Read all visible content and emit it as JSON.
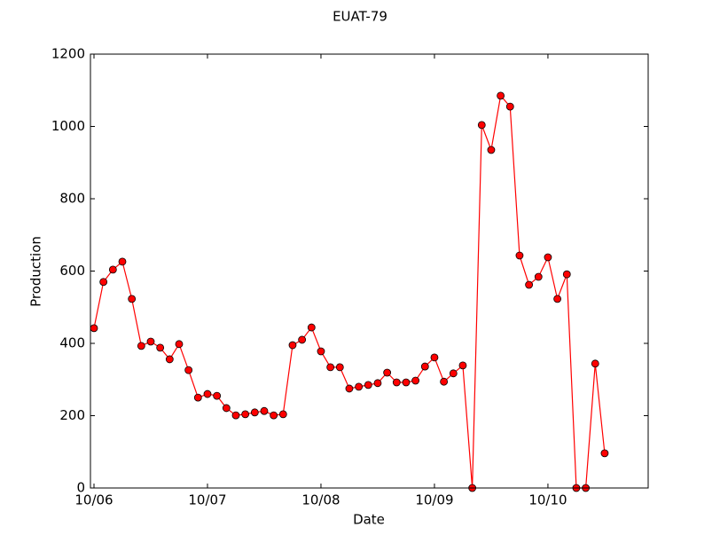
{
  "chart_data": {
    "type": "line",
    "title": "EUAT-79",
    "xlabel": "Date",
    "ylabel": "Production",
    "x": [
      0,
      1,
      2,
      3,
      4,
      5,
      6,
      7,
      8,
      9,
      10,
      11,
      12,
      13,
      14,
      15,
      16,
      17,
      18,
      19,
      20,
      21,
      22,
      23,
      24,
      25,
      26,
      27,
      28,
      29,
      30,
      31,
      32,
      33,
      34,
      35,
      36,
      37,
      38,
      39,
      40,
      41,
      42,
      43,
      44,
      45,
      46,
      47,
      48,
      49,
      50,
      51,
      52,
      53,
      54
    ],
    "series": [
      {
        "name": "Production",
        "color": "#ff0000",
        "values": [
          442,
          570,
          604,
          626,
          523,
          393,
          405,
          388,
          356,
          398,
          326,
          250,
          260,
          255,
          221,
          201,
          204,
          209,
          213,
          201,
          204,
          395,
          410,
          444,
          378,
          334,
          334,
          275,
          280,
          285,
          290,
          319,
          292,
          292,
          297,
          336,
          361,
          294,
          317,
          339,
          0,
          1004,
          935,
          1085,
          1055,
          643,
          562,
          584,
          638,
          523,
          591,
          0,
          0,
          344,
          96
        ]
      }
    ],
    "xlim": [
      -0.375,
      58.6
    ],
    "xticks": [
      {
        "value": 0,
        "label": "10/06"
      },
      {
        "value": 12,
        "label": "10/07"
      },
      {
        "value": 24,
        "label": "10/08"
      },
      {
        "value": 36,
        "label": "10/09"
      },
      {
        "value": 48,
        "label": "10/10"
      }
    ],
    "ylim": [
      0,
      1200
    ],
    "yticks": [
      0,
      200,
      400,
      600,
      800,
      1000,
      1200
    ]
  }
}
